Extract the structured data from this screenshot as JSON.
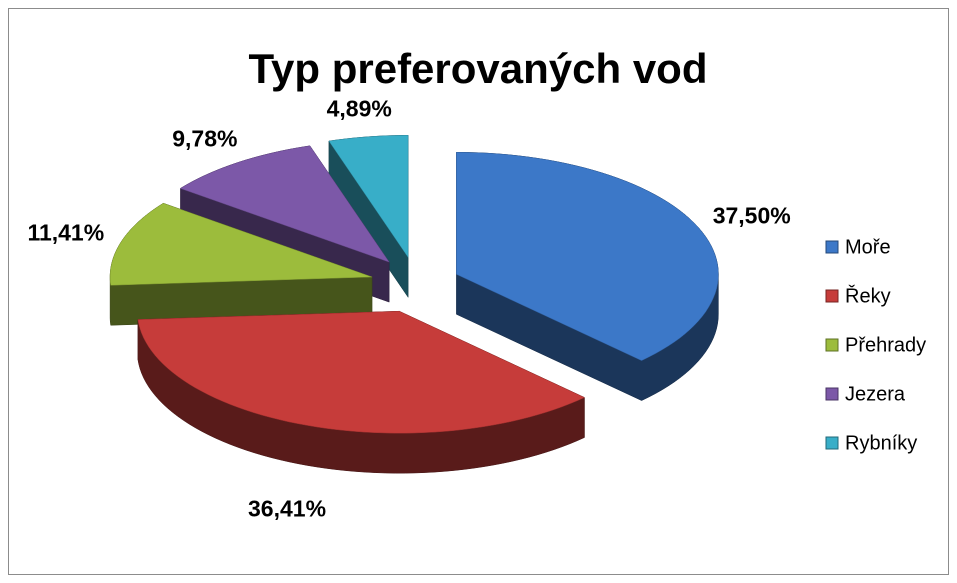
{
  "chart_data": {
    "type": "pie",
    "title": "Typ preferovaných vod",
    "categories": [
      "Moře",
      "Řeky",
      "Přehrady",
      "Jezera",
      "Rybníky"
    ],
    "values": [
      37.5,
      36.41,
      11.41,
      9.78,
      4.89
    ],
    "value_labels": [
      "37,50%",
      "36,41%",
      "11,41%",
      "9,78%",
      "4,89%"
    ],
    "colors": [
      "#3c78c8",
      "#c63c3a",
      "#9cbc3c",
      "#7c58a8",
      "#38aec8"
    ],
    "legend": "right",
    "exploded": true,
    "three_d": true
  }
}
